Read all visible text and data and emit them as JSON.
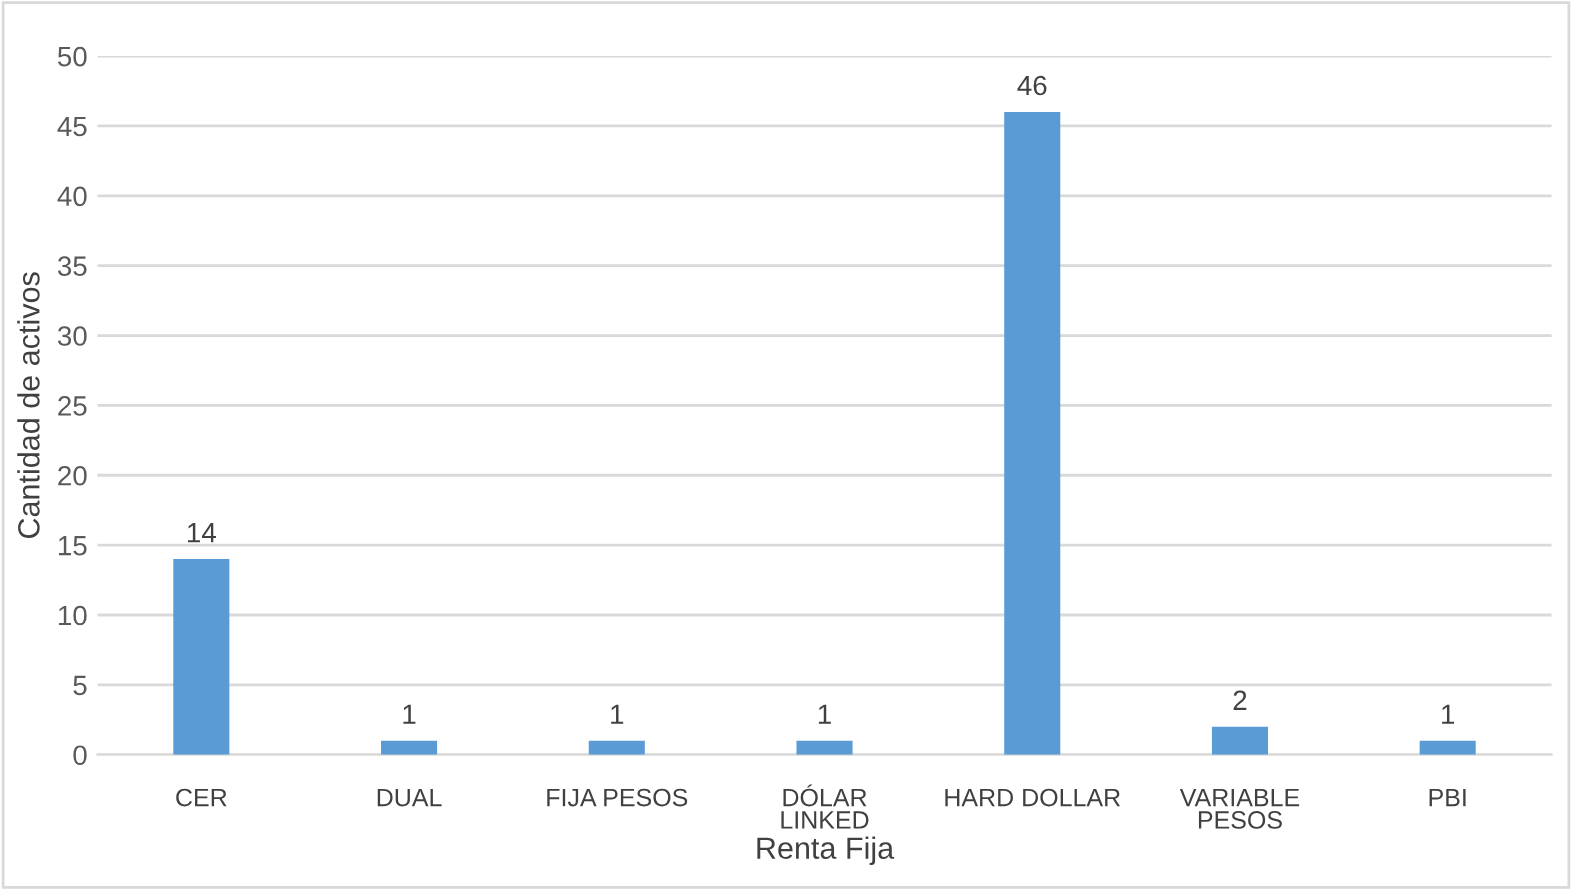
{
  "chart_data": {
    "type": "bar",
    "xlabel": "Renta Fija",
    "ylabel": "Cantidad de activos",
    "categories": [
      "CER",
      "DUAL",
      "FIJA PESOS",
      "DÓLAR\nLINKED",
      "HARD DOLLAR",
      "VARIABLE\nPESOS",
      "PBI"
    ],
    "values": [
      14,
      1,
      1,
      1,
      46,
      2,
      1
    ],
    "color": "#5b9bd5",
    "ylim": [
      0,
      50
    ],
    "yticks": [
      0,
      5,
      10,
      15,
      20,
      25,
      30,
      35,
      40,
      45,
      50
    ],
    "grid": "y",
    "data_labels": true
  }
}
